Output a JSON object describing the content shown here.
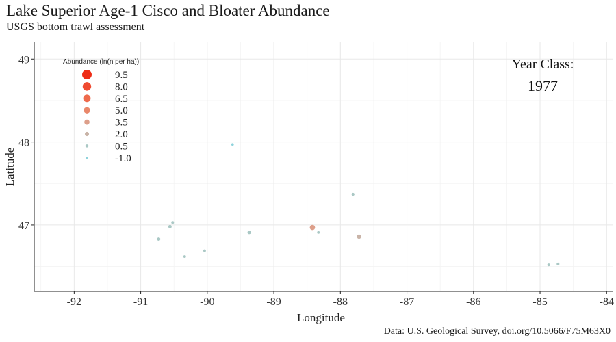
{
  "chart_data": {
    "type": "scatter",
    "title": "Lake Superior Age-1 Cisco and Bloater Abundance",
    "subtitle": "USGS bottom trawl assessment",
    "caption": "Data: U.S. Geological Survey, doi.org/10.5066/F75M63X0",
    "xlabel": "Longitude",
    "ylabel": "Latitude",
    "xlim": [
      -92.6,
      -83.9
    ],
    "ylim": [
      46.2,
      49.2
    ],
    "x_ticks": [
      -92,
      -91,
      -90,
      -89,
      -88,
      -87,
      -86,
      -85,
      -84
    ],
    "y_ticks": [
      47,
      48,
      49
    ],
    "grid": true,
    "legend": {
      "title": "Abundance (ln(n per ha))",
      "placement": "top-left",
      "items": [
        {
          "label": "9.5",
          "value": 9.5,
          "color": "#ee2c15"
        },
        {
          "label": "8.0",
          "value": 8.0,
          "color": "#ef4a30"
        },
        {
          "label": "6.5",
          "value": 6.5,
          "color": "#ee6a4c"
        },
        {
          "label": "5.0",
          "value": 5.0,
          "color": "#e9876a"
        },
        {
          "label": "3.5",
          "value": 3.5,
          "color": "#dd9f8a"
        },
        {
          "label": "2.0",
          "value": 2.0,
          "color": "#c9b4a8"
        },
        {
          "label": "0.5",
          "value": 0.5,
          "color": "#aac8c5"
        },
        {
          "label": "-1.0",
          "value": -1.0,
          "color": "#8fd3dc"
        }
      ]
    },
    "annotation": {
      "label": "Year Class:",
      "year": "1977"
    },
    "points": [
      {
        "lon": -89.62,
        "lat": 47.97,
        "abundance": -0.3
      },
      {
        "lon": -87.81,
        "lat": 47.37,
        "abundance": 0.2
      },
      {
        "lon": -90.52,
        "lat": 47.03,
        "abundance": 0.0
      },
      {
        "lon": -90.56,
        "lat": 46.98,
        "abundance": 0.8
      },
      {
        "lon": -90.73,
        "lat": 46.83,
        "abundance": 0.8
      },
      {
        "lon": -89.37,
        "lat": 46.91,
        "abundance": 1.0
      },
      {
        "lon": -88.42,
        "lat": 46.97,
        "abundance": 3.5
      },
      {
        "lon": -88.33,
        "lat": 46.91,
        "abundance": -0.2
      },
      {
        "lon": -87.72,
        "lat": 46.86,
        "abundance": 2.2
      },
      {
        "lon": -90.04,
        "lat": 46.69,
        "abundance": -0.1
      },
      {
        "lon": -90.34,
        "lat": 46.62,
        "abundance": -0.1
      },
      {
        "lon": -84.87,
        "lat": 46.52,
        "abundance": 0.0
      },
      {
        "lon": -84.73,
        "lat": 46.53,
        "abundance": 0.0
      }
    ]
  }
}
